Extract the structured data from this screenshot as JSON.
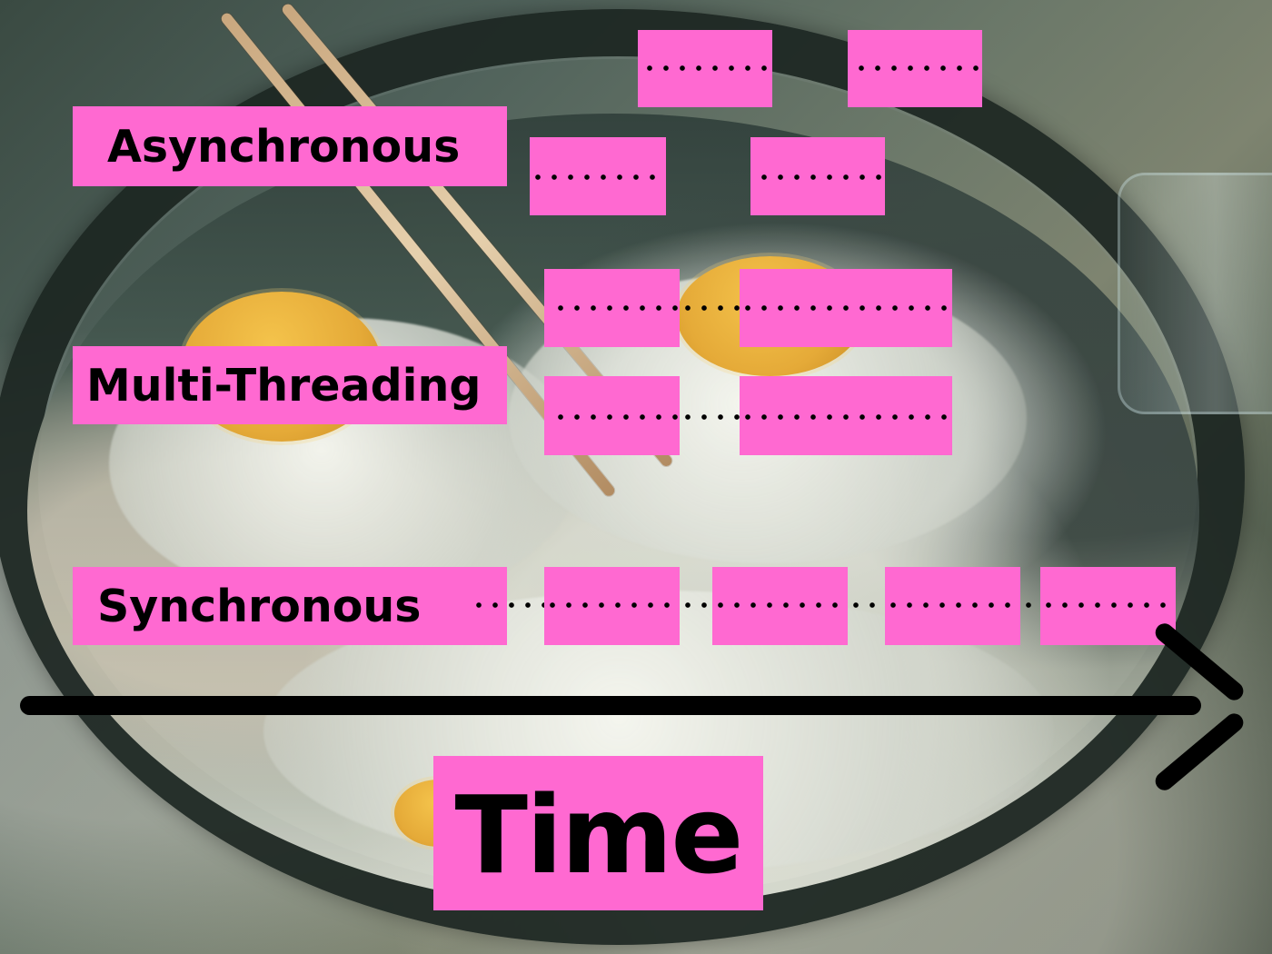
{
  "diagram": {
    "labels": {
      "asynchronous": "Asynchronous",
      "multi_threading": "Multi-Threading",
      "synchronous": "Synchronous",
      "time": "Time"
    }
  },
  "colors": {
    "accent_pink": "#ff69d1",
    "text": "#000000"
  }
}
